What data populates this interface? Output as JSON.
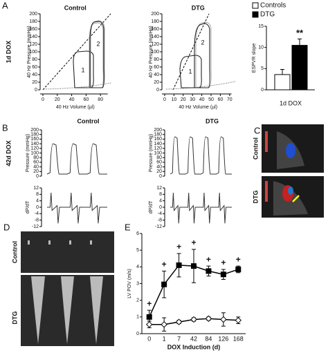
{
  "panels": [
    "A",
    "B",
    "C",
    "D",
    "E"
  ],
  "row_labels": [
    "1d DOX",
    "42d DOX"
  ],
  "image_labels": {
    "C": [
      "Control",
      "DTG"
    ],
    "D": [
      "Control",
      "DTG"
    ]
  },
  "chart_data": [
    {
      "type": "pv_loop",
      "title": "Control",
      "xlabel": "40 Hz Volume (µl)",
      "ylabel": "40 Hz Pressure (mmHg)",
      "xlim": [
        0,
        90
      ],
      "xticks": [
        0,
        20,
        40,
        60,
        80
      ],
      "ylim": [
        0,
        200
      ],
      "yticks": [
        0,
        20,
        40,
        60,
        80,
        100,
        120,
        140,
        160,
        180,
        200
      ],
      "annotations": [
        "1",
        "2"
      ]
    },
    {
      "type": "pv_loop",
      "title": "DTG",
      "xlabel": "40 Hz Volume (µl)",
      "ylabel": "40 Hz Pressure (mmHg)",
      "xlim": [
        0,
        72
      ],
      "xticks": [
        0,
        10,
        20,
        30,
        40,
        50,
        60,
        70
      ],
      "ylim": [
        0,
        200
      ],
      "yticks": [
        0,
        20,
        40,
        60,
        80,
        100,
        120,
        140,
        160,
        180,
        200
      ],
      "annotations": [
        "1",
        "2"
      ]
    },
    {
      "type": "bar",
      "ylabel": "ESPVR slope",
      "xlabel": "1d DOX",
      "ylim": [
        0,
        15
      ],
      "yticks": [
        0,
        5,
        10,
        15
      ],
      "series": [
        {
          "name": "Controls",
          "color": "#ffffff",
          "values": [
            3.6
          ],
          "errors": [
            1.2
          ]
        },
        {
          "name": "DTG",
          "color": "#000000",
          "values": [
            10.5
          ],
          "errors": [
            1.5
          ]
        }
      ],
      "annotations": [
        "**"
      ]
    },
    {
      "type": "trace",
      "title": "Control",
      "ylabel": "Pressure (mmHg)",
      "y2label": "dP/dT",
      "ylim": [
        0,
        200
      ],
      "yticks": [
        0,
        20,
        40,
        60,
        80,
        100,
        120,
        140,
        160,
        180,
        200
      ],
      "y2lim": [
        -12,
        12
      ],
      "y2ticks": [
        -12,
        -8,
        -4,
        0,
        4,
        8,
        12
      ]
    },
    {
      "type": "trace",
      "title": "DTG",
      "ylabel": "Pressure (mmHg)",
      "y2label": "dP/dT",
      "ylim": [
        0,
        200
      ],
      "yticks": [
        0,
        20,
        40,
        60,
        80,
        100,
        120,
        140,
        160,
        180,
        200
      ],
      "y2lim": [
        -12,
        12
      ],
      "y2ticks": [
        -12,
        -8,
        -4,
        0,
        4,
        8,
        12
      ]
    },
    {
      "type": "line",
      "ylabel": "LV POV (m/s)",
      "xlabel": "DOX Induction (d)",
      "categories": [
        "0",
        "1",
        "7",
        "42",
        "84",
        "126",
        "168"
      ],
      "ylim": [
        0,
        6
      ],
      "yticks": [
        0,
        1,
        2,
        3,
        4,
        5,
        6
      ],
      "series": [
        {
          "color": "#000000",
          "marker": "square",
          "values": [
            1.0,
            2.95,
            4.1,
            4.05,
            3.75,
            3.55,
            3.85
          ],
          "errors": [
            0.4,
            0.8,
            0.7,
            1.0,
            0.3,
            0.3,
            0.2
          ]
        },
        {
          "color": "#ffffff",
          "marker": "diamond",
          "values": [
            0.55,
            0.55,
            0.7,
            0.85,
            0.9,
            0.85,
            0.8
          ],
          "errors": [
            0.2,
            0.4,
            0.1,
            0.1,
            0.1,
            0.4,
            0.2
          ]
        }
      ],
      "annotations": [
        "+",
        "+",
        "+",
        "+",
        "+",
        "+",
        "+"
      ]
    }
  ]
}
